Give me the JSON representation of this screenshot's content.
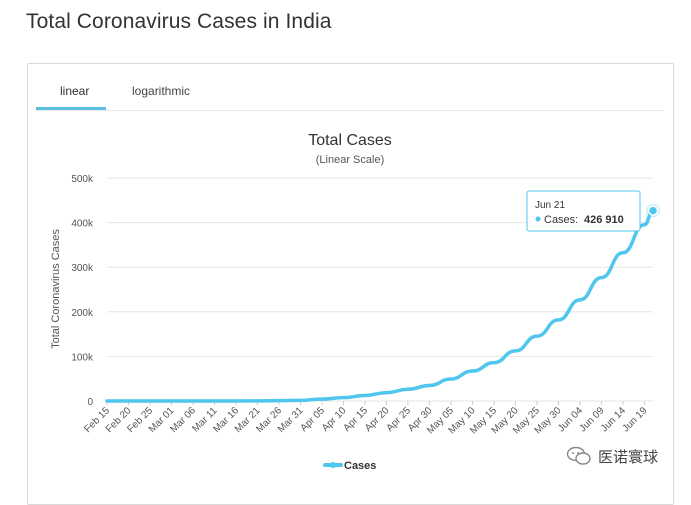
{
  "header": {
    "title": "Total Coronavirus Cases in India"
  },
  "tabs": [
    {
      "label": "linear",
      "active": true
    },
    {
      "label": "logarithmic",
      "active": false
    }
  ],
  "watermark": {
    "text": "医诺寰球"
  },
  "colors": {
    "series": "#4fc6ee",
    "tab_accent": "#5bc0de",
    "grid": "#e6e6e6"
  },
  "chart_data": {
    "type": "line",
    "title": "Total Cases",
    "subtitle": "(Linear Scale)",
    "ylabel": "Total Coronavirus Cases",
    "xlabel": "",
    "ylim": [
      0,
      500000
    ],
    "yticks": [
      0,
      100000,
      200000,
      300000,
      400000,
      500000
    ],
    "ytick_labels": [
      "0",
      "100k",
      "200k",
      "300k",
      "400k",
      "500k"
    ],
    "grid": true,
    "legend": "bottom",
    "x_tick_labels": [
      "Feb 15",
      "Feb 20",
      "Feb 25",
      "Mar 01",
      "Mar 06",
      "Mar 11",
      "Mar 16",
      "Mar 21",
      "Mar 26",
      "Mar 31",
      "Apr 05",
      "Apr 10",
      "Apr 15",
      "Apr 20",
      "Apr 25",
      "Apr 30",
      "May 05",
      "May 10",
      "May 15",
      "May 20",
      "May 25",
      "May 30",
      "Jun 04",
      "Jun 09",
      "Jun 14",
      "Jun 19"
    ],
    "series": [
      {
        "name": "Cases",
        "points": [
          [
            "Feb 15",
            3
          ],
          [
            "Feb 20",
            3
          ],
          [
            "Feb 25",
            3
          ],
          [
            "Mar 01",
            3
          ],
          [
            "Mar 06",
            31
          ],
          [
            "Mar 11",
            62
          ],
          [
            "Mar 16",
            114
          ],
          [
            "Mar 21",
            330
          ],
          [
            "Mar 26",
            727
          ],
          [
            "Mar 31",
            1397
          ],
          [
            "Apr 05",
            4281
          ],
          [
            "Apr 10",
            7600
          ],
          [
            "Apr 15",
            12380
          ],
          [
            "Apr 20",
            18539
          ],
          [
            "Apr 25",
            26283
          ],
          [
            "Apr 30",
            34863
          ],
          [
            "May 05",
            49400
          ],
          [
            "May 10",
            67152
          ],
          [
            "May 15",
            85940
          ],
          [
            "May 20",
            112359
          ],
          [
            "May 25",
            145380
          ],
          [
            "May 30",
            181827
          ],
          [
            "Jun 04",
            226770
          ],
          [
            "Jun 09",
            276583
          ],
          [
            "Jun 14",
            332424
          ],
          [
            "Jun 19",
            395048
          ],
          [
            "Jun 21",
            426910
          ]
        ]
      }
    ],
    "tooltip": {
      "date": "Jun 21",
      "label": "Cases:",
      "value": "426 910"
    },
    "legend_entries": [
      "Cases"
    ]
  }
}
